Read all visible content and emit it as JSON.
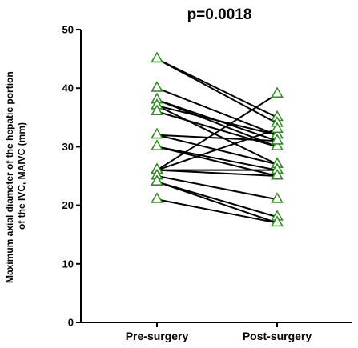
{
  "chart_data": {
    "type": "line",
    "title": "p=0.0018",
    "xlabel": "",
    "ylabel": "Maximum axial diameter of the hepatic portion of the IVC, MAIVC (mm)",
    "ylabel_lines": [
      "Maximum axial diameter of the hepatic portion",
      "of the IVC, MAIVC (mm)"
    ],
    "categories": [
      "Pre-surgery",
      "Post-surgery"
    ],
    "ylim": [
      0,
      50
    ],
    "yticks": [
      0,
      10,
      20,
      30,
      40,
      50
    ],
    "grid": false,
    "marker": "open-triangle",
    "marker_color": "#2e8b1f",
    "line_color": "#000000",
    "pairs": [
      [
        45,
        35
      ],
      [
        45,
        34
      ],
      [
        40,
        32
      ],
      [
        38,
        31
      ],
      [
        38,
        30
      ],
      [
        37,
        32
      ],
      [
        37,
        27
      ],
      [
        36,
        30
      ],
      [
        32,
        31
      ],
      [
        32,
        27
      ],
      [
        30,
        26
      ],
      [
        30,
        25
      ],
      [
        26,
        39
      ],
      [
        26,
        33
      ],
      [
        26,
        26
      ],
      [
        26,
        25
      ],
      [
        25,
        21
      ],
      [
        24,
        18
      ],
      [
        24,
        17
      ],
      [
        21,
        17
      ]
    ]
  }
}
